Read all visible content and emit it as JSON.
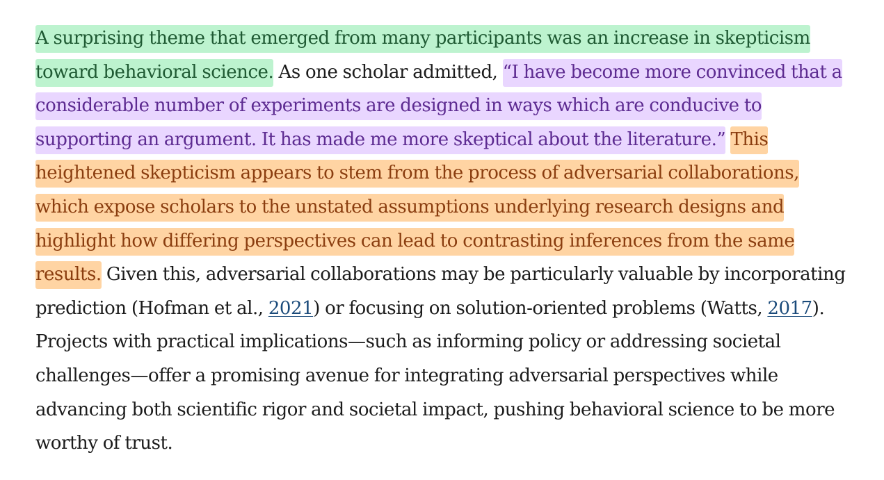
{
  "paragraph": {
    "highlight_green": {
      "line1": "A surprising theme that emerged from many participants was an increase in skepticism",
      "line2": "toward behavioral science."
    },
    "plain_after_green": " As one scholar admitted, ",
    "highlight_purple": {
      "line2": "“I have become more convinced that a",
      "line3": "considerable number of experiments are designed in ways which are conducive to",
      "line4": "supporting an argument. It has made me more skeptical about the literature.”"
    },
    "highlight_orange": {
      "line4": "This",
      "line5": "heightened skepticism appears to stem from the process of adversarial collaborations,",
      "line6": "which expose scholars to the unstated assumptions underlying research designs and",
      "line7": "highlight how differing perspectives can lead to contrasting inferences from the same",
      "line8": "results."
    },
    "line8_rest": " Given this, adversarial collaborations may be particularly valuable by incorporating",
    "line9_pre": "prediction (Hofman et al., ",
    "citation_hofman": "2021",
    "line9_mid": ") or focusing on solution-oriented problems (Watts, ",
    "citation_watts": "2017",
    "line9_post": ").",
    "line10": "Projects with practical implications—such as informing policy or addressing societal",
    "line11": "challenges—offer a promising avenue for integrating adversarial perspectives while",
    "line12": "advancing both scientific rigor and societal impact, pushing behavioral science to be more",
    "line13": "worthy of trust."
  },
  "colors": {
    "highlight_green": "#bdf3cf",
    "highlight_purple": "#e9d6ff",
    "highlight_orange": "#ffd4a3",
    "text": "#1b1b1b",
    "link": "#1a4a7a"
  }
}
